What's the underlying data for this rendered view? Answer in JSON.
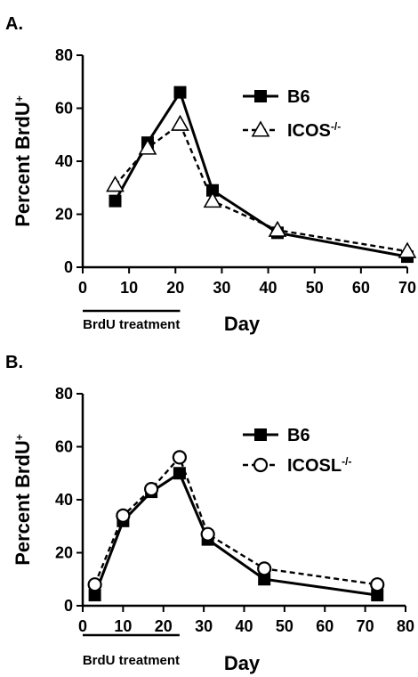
{
  "chart_data": [
    {
      "panel": "A.",
      "type": "line",
      "xlabel": "Day",
      "ylabel": "Percent BrdU",
      "ylabel_sup": "+",
      "xlim": [
        0,
        70
      ],
      "ylim": [
        0,
        80
      ],
      "xticks": [
        0,
        10,
        20,
        30,
        40,
        50,
        60,
        70
      ],
      "yticks": [
        0,
        20,
        40,
        60,
        80
      ],
      "grid": false,
      "legend": "top-right",
      "annotation": {
        "label": "BrdU treatment",
        "x_range": [
          0,
          21
        ]
      },
      "series": [
        {
          "name": "B6",
          "name_sup": "",
          "marker": "filled-square",
          "line": "solid",
          "color": "#000000",
          "x": [
            7,
            14,
            21,
            28,
            42,
            70
          ],
          "y": [
            25,
            47,
            66,
            29,
            13,
            4
          ]
        },
        {
          "name": "ICOS",
          "name_sup": "-/-",
          "marker": "open-triangle",
          "line": "dashed",
          "color": "#000000",
          "x": [
            7,
            14,
            21,
            28,
            42,
            70
          ],
          "y": [
            31,
            45,
            54,
            25,
            14,
            6
          ]
        }
      ]
    },
    {
      "panel": "B.",
      "type": "line",
      "xlabel": "Day",
      "ylabel": "Percent BrdU",
      "ylabel_sup": "+",
      "xlim": [
        0,
        80
      ],
      "ylim": [
        0,
        80
      ],
      "xticks": [
        0,
        10,
        20,
        30,
        40,
        50,
        60,
        70,
        80
      ],
      "yticks": [
        0,
        20,
        40,
        60,
        80
      ],
      "grid": false,
      "legend": "top-right",
      "annotation": {
        "label": "BrdU treatment",
        "x_range": [
          0,
          24
        ]
      },
      "series": [
        {
          "name": "B6",
          "name_sup": "",
          "marker": "filled-square",
          "line": "solid",
          "color": "#000000",
          "x": [
            3,
            10,
            17,
            24,
            31,
            45,
            73
          ],
          "y": [
            4,
            32,
            43,
            50,
            25,
            10,
            4
          ]
        },
        {
          "name": "ICOSL",
          "name_sup": "-/-",
          "marker": "open-circle",
          "line": "dashed",
          "color": "#000000",
          "x": [
            3,
            10,
            17,
            24,
            31,
            45,
            73
          ],
          "y": [
            8,
            34,
            44,
            56,
            27,
            14,
            8
          ]
        }
      ]
    }
  ]
}
